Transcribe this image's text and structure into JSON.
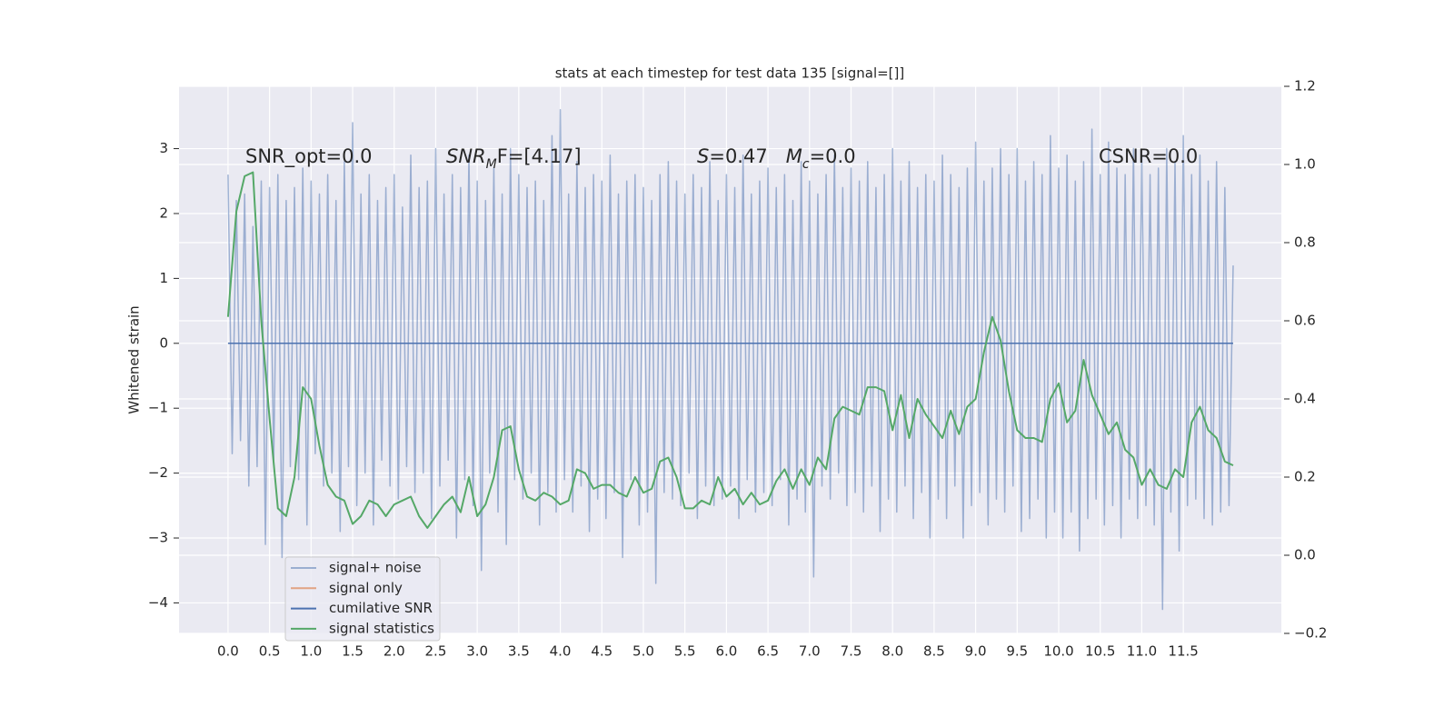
{
  "chart_data": {
    "type": "line",
    "title": "stats at each timestep for test data 135 [signal=[]]",
    "ylabel": "Whitened strain",
    "grid": true,
    "legend": "lower left",
    "xlim": [
      -0.59,
      12.68
    ],
    "ylim": [
      -4.47,
      3.96
    ],
    "y2lim": [
      -0.2,
      1.2
    ],
    "xticks": [
      {
        "value": 0,
        "label": "0.0"
      },
      0.5,
      {
        "value": 1,
        "label": "1.0"
      },
      1.5,
      {
        "value": 2,
        "label": "2.0"
      },
      2.5,
      {
        "value": 3,
        "label": "3.0"
      },
      3.5,
      {
        "value": 4,
        "label": "4.0"
      },
      4.5,
      {
        "value": 5,
        "label": "5.0"
      },
      5.5,
      {
        "value": 6,
        "label": "6.0"
      },
      6.5,
      {
        "value": 7,
        "label": "7.0"
      },
      7.5,
      {
        "value": 8,
        "label": "8.0"
      },
      8.5,
      {
        "value": 9,
        "label": "9.0"
      },
      9.5,
      {
        "value": 10,
        "label": "10.0"
      },
      10.5,
      {
        "value": 11,
        "label": "11.0"
      },
      11.5
    ],
    "yticks": [
      {
        "value": -4,
        "label": "−4"
      },
      {
        "value": -3,
        "label": "−3"
      },
      {
        "value": -2,
        "label": "−2"
      },
      {
        "value": -1,
        "label": "−1"
      },
      0,
      1,
      2,
      3
    ],
    "y2ticks": [
      {
        "value": -0.2,
        "label": "−0.2"
      },
      {
        "value": 0,
        "label": "0.0"
      },
      0.2,
      0.4,
      0.6,
      0.8,
      {
        "value": 1,
        "label": "1.0"
      },
      1.2
    ],
    "annotations": [
      [
        {
          "text": "SNR_opt=0.0"
        }
      ],
      [
        {
          "text": "SNR",
          "italic": true
        },
        {
          "text": "M",
          "italic": true,
          "sub": true
        },
        {
          "text": "F=[4.17]"
        }
      ],
      [
        {
          "text": "S",
          "italic": true
        },
        {
          "text": "=0.47   "
        },
        {
          "text": "M",
          "italic": true
        },
        {
          "text": "c",
          "italic": true,
          "sub": true
        },
        {
          "text": "=0.0"
        }
      ],
      [
        {
          "text": "CSNR=0.0"
        }
      ]
    ],
    "series": [
      {
        "name": "signal+ noise",
        "color": "#4c72b0",
        "opacity": 0.5,
        "axis": "y",
        "x": [
          0,
          0.05,
          0.1,
          0.15,
          0.2,
          0.25,
          0.3,
          0.35,
          0.4,
          0.45,
          0.5,
          0.55,
          0.6,
          0.65,
          0.7,
          0.75,
          0.8,
          0.85,
          0.9,
          0.95,
          1,
          1.05,
          1.1,
          1.15,
          1.2,
          1.25,
          1.3,
          1.35,
          1.4,
          1.45,
          1.5,
          1.55,
          1.6,
          1.65,
          1.7,
          1.75,
          1.8,
          1.85,
          1.9,
          1.95,
          2,
          2.05,
          2.1,
          2.15,
          2.2,
          2.25,
          2.3,
          2.35,
          2.4,
          2.45,
          2.5,
          2.55,
          2.6,
          2.65,
          2.7,
          2.75,
          2.8,
          2.85,
          2.9,
          2.95,
          3,
          3.05,
          3.1,
          3.15,
          3.2,
          3.25,
          3.3,
          3.35,
          3.4,
          3.45,
          3.5,
          3.55,
          3.6,
          3.65,
          3.7,
          3.75,
          3.8,
          3.85,
          3.9,
          3.95,
          4,
          4.05,
          4.1,
          4.15,
          4.2,
          4.25,
          4.3,
          4.35,
          4.4,
          4.45,
          4.5,
          4.55,
          4.6,
          4.65,
          4.7,
          4.75,
          4.8,
          4.85,
          4.9,
          4.95,
          5,
          5.05,
          5.1,
          5.15,
          5.2,
          5.25,
          5.3,
          5.35,
          5.4,
          5.45,
          5.5,
          5.55,
          5.6,
          5.65,
          5.7,
          5.75,
          5.8,
          5.85,
          5.9,
          5.95,
          6,
          6.05,
          6.1,
          6.15,
          6.2,
          6.25,
          6.3,
          6.35,
          6.4,
          6.45,
          6.5,
          6.55,
          6.6,
          6.65,
          6.7,
          6.75,
          6.8,
          6.85,
          6.9,
          6.95,
          7,
          7.05,
          7.1,
          7.15,
          7.2,
          7.25,
          7.3,
          7.35,
          7.4,
          7.45,
          7.5,
          7.55,
          7.6,
          7.65,
          7.7,
          7.75,
          7.8,
          7.85,
          7.9,
          7.95,
          8,
          8.05,
          8.1,
          8.15,
          8.2,
          8.25,
          8.3,
          8.35,
          8.4,
          8.45,
          8.5,
          8.55,
          8.6,
          8.65,
          8.7,
          8.75,
          8.8,
          8.85,
          8.9,
          8.95,
          9,
          9.05,
          9.1,
          9.15,
          9.2,
          9.25,
          9.3,
          9.35,
          9.4,
          9.45,
          9.5,
          9.55,
          9.6,
          9.65,
          9.7,
          9.75,
          9.8,
          9.85,
          9.9,
          9.95,
          10,
          10.05,
          10.1,
          10.15,
          10.2,
          10.25,
          10.3,
          10.35,
          10.4,
          10.45,
          10.5,
          10.55,
          10.6,
          10.65,
          10.7,
          10.75,
          10.8,
          10.85,
          10.9,
          10.95,
          11,
          11.05,
          11.1,
          11.15,
          11.2,
          11.25,
          11.3,
          11.35,
          11.4,
          11.45,
          11.5,
          11.55,
          11.6,
          11.65,
          11.7,
          11.75,
          11.8,
          11.85,
          11.9,
          11.95,
          12,
          12.05,
          12.1
        ],
        "values": [
          2.6,
          -1.7,
          2.2,
          -1.5,
          2.3,
          -2.2,
          1.8,
          -1.9,
          2.5,
          -3.1,
          2.4,
          -1.8,
          2.6,
          -3.3,
          2.2,
          -1.9,
          2.4,
          -2.1,
          2.7,
          -2.8,
          2.5,
          -1.7,
          2.3,
          -2.2,
          2.6,
          -2.0,
          2.2,
          -2.9,
          2.8,
          -1.9,
          3.4,
          -2.5,
          2.3,
          -2.0,
          2.6,
          -2.8,
          2.2,
          -1.8,
          2.4,
          -2.2,
          2.6,
          -2.4,
          2.1,
          -1.9,
          2.9,
          -2.3,
          2.4,
          -2.0,
          2.5,
          -2.7,
          3.0,
          -2.2,
          2.3,
          -1.8,
          2.6,
          -3.0,
          2.4,
          -2.1,
          2.9,
          -2.5,
          2.5,
          -3.5,
          2.2,
          -2.0,
          2.7,
          -2.6,
          2.3,
          -3.1,
          3.0,
          -2.1,
          2.6,
          -2.4,
          2.4,
          -2.0,
          2.5,
          -2.8,
          2.2,
          -2.3,
          3.2,
          -2.6,
          3.6,
          -2.1,
          2.3,
          -2.6,
          2.8,
          -2.2,
          2.4,
          -2.9,
          2.6,
          -2.4,
          2.5,
          -2.7,
          2.9,
          -2.3,
          2.3,
          -3.3,
          2.5,
          -2.1,
          2.6,
          -2.8,
          2.4,
          -2.6,
          2.2,
          -3.7,
          2.6,
          -2.3,
          2.8,
          -2.4,
          2.5,
          -2.5,
          2.3,
          -2.0,
          2.6,
          -2.7,
          2.4,
          -2.2,
          2.8,
          -2.5,
          2.2,
          -2.4,
          2.6,
          -2.2,
          2.4,
          -2.7,
          2.9,
          -2.1,
          2.3,
          -2.6,
          2.5,
          -2.3,
          2.7,
          -2.5,
          2.4,
          -2.1,
          2.6,
          -2.8,
          2.2,
          -2.4,
          2.8,
          -2.6,
          2.5,
          -3.6,
          2.3,
          -2.2,
          2.6,
          -2.4,
          2.9,
          -2.0,
          2.4,
          -2.5,
          2.7,
          -2.3,
          2.5,
          -2.6,
          2.8,
          -2.2,
          2.4,
          -2.9,
          2.6,
          -2.4,
          3.0,
          -2.6,
          2.5,
          -2.2,
          2.8,
          -2.7,
          2.4,
          -2.3,
          2.6,
          -3.0,
          2.5,
          -2.4,
          2.9,
          -2.7,
          2.6,
          -2.2,
          2.4,
          -3.0,
          2.7,
          -2.5,
          3.1,
          -2.3,
          2.5,
          -2.8,
          2.7,
          -2.4,
          3.0,
          -2.6,
          2.6,
          -2.2,
          3.0,
          -2.9,
          2.5,
          -2.7,
          2.8,
          -2.4,
          2.6,
          -3.0,
          3.2,
          -2.6,
          2.7,
          -3.0,
          2.9,
          -2.6,
          2.5,
          -3.2,
          2.8,
          -2.7,
          3.3,
          -2.4,
          2.6,
          -2.8,
          3.1,
          -2.5,
          2.7,
          -3.0,
          2.6,
          -2.4,
          3.0,
          -2.7,
          2.9,
          -2.5,
          2.6,
          -2.8,
          2.7,
          -4.1,
          3.0,
          -2.6,
          2.8,
          -3.2,
          3.2,
          -2.5,
          2.6,
          -2.4,
          2.9,
          -2.7,
          2.5,
          -2.8,
          2.8,
          -2.6,
          2.4,
          -2.5,
          1.2
        ]
      },
      {
        "name": "signal only",
        "color": "#dd8452",
        "opacity": 0.7,
        "axis": "y",
        "x": [
          0,
          12.1
        ],
        "values": [
          0,
          0
        ]
      },
      {
        "name": "cumilative SNR",
        "color": "#4c72b0",
        "opacity": 1,
        "axis": "y",
        "x": [
          0,
          12.1
        ],
        "values": [
          0,
          0
        ]
      },
      {
        "name": "signal statistics",
        "color": "#55a868",
        "opacity": 1,
        "axis": "y2",
        "x": [
          0,
          0.1,
          0.2,
          0.3,
          0.4,
          0.5,
          0.6,
          0.7,
          0.8,
          0.9,
          1,
          1.1,
          1.2,
          1.3,
          1.4,
          1.5,
          1.6,
          1.7,
          1.8,
          1.9,
          2,
          2.1,
          2.2,
          2.3,
          2.4,
          2.5,
          2.6,
          2.7,
          2.8,
          2.9,
          3,
          3.1,
          3.2,
          3.3,
          3.4,
          3.5,
          3.6,
          3.7,
          3.8,
          3.9,
          4,
          4.1,
          4.2,
          4.3,
          4.4,
          4.5,
          4.6,
          4.7,
          4.8,
          4.9,
          5,
          5.1,
          5.2,
          5.3,
          5.4,
          5.5,
          5.6,
          5.7,
          5.8,
          5.9,
          6,
          6.1,
          6.2,
          6.3,
          6.4,
          6.5,
          6.6,
          6.7,
          6.8,
          6.9,
          7,
          7.1,
          7.2,
          7.3,
          7.4,
          7.5,
          7.6,
          7.7,
          7.8,
          7.9,
          8,
          8.1,
          8.2,
          8.3,
          8.4,
          8.5,
          8.6,
          8.7,
          8.8,
          8.9,
          9,
          9.1,
          9.2,
          9.3,
          9.4,
          9.5,
          9.6,
          9.7,
          9.8,
          9.9,
          10,
          10.1,
          10.2,
          10.3,
          10.4,
          10.5,
          10.6,
          10.7,
          10.8,
          10.9,
          11,
          11.1,
          11.2,
          11.3,
          11.4,
          11.5,
          11.6,
          11.7,
          11.8,
          11.9,
          12,
          12.1
        ],
        "values": [
          0.61,
          0.88,
          0.97,
          0.98,
          0.6,
          0.35,
          0.12,
          0.1,
          0.2,
          0.43,
          0.4,
          0.28,
          0.18,
          0.15,
          0.14,
          0.08,
          0.1,
          0.14,
          0.13,
          0.1,
          0.13,
          0.14,
          0.15,
          0.1,
          0.07,
          0.1,
          0.13,
          0.15,
          0.11,
          0.2,
          0.1,
          0.13,
          0.2,
          0.32,
          0.33,
          0.22,
          0.15,
          0.14,
          0.16,
          0.15,
          0.13,
          0.14,
          0.22,
          0.21,
          0.17,
          0.18,
          0.18,
          0.16,
          0.15,
          0.2,
          0.16,
          0.17,
          0.24,
          0.25,
          0.2,
          0.12,
          0.12,
          0.14,
          0.13,
          0.2,
          0.15,
          0.17,
          0.13,
          0.16,
          0.13,
          0.14,
          0.19,
          0.22,
          0.17,
          0.22,
          0.18,
          0.25,
          0.22,
          0.35,
          0.38,
          0.37,
          0.36,
          0.43,
          0.43,
          0.42,
          0.32,
          0.41,
          0.3,
          0.4,
          0.36,
          0.33,
          0.3,
          0.37,
          0.31,
          0.38,
          0.4,
          0.52,
          0.61,
          0.55,
          0.42,
          0.32,
          0.3,
          0.3,
          0.29,
          0.4,
          0.44,
          0.34,
          0.37,
          0.5,
          0.41,
          0.36,
          0.31,
          0.34,
          0.27,
          0.25,
          0.18,
          0.22,
          0.18,
          0.17,
          0.22,
          0.2,
          0.34,
          0.38,
          0.32,
          0.3,
          0.24,
          0.23
        ]
      }
    ]
  }
}
